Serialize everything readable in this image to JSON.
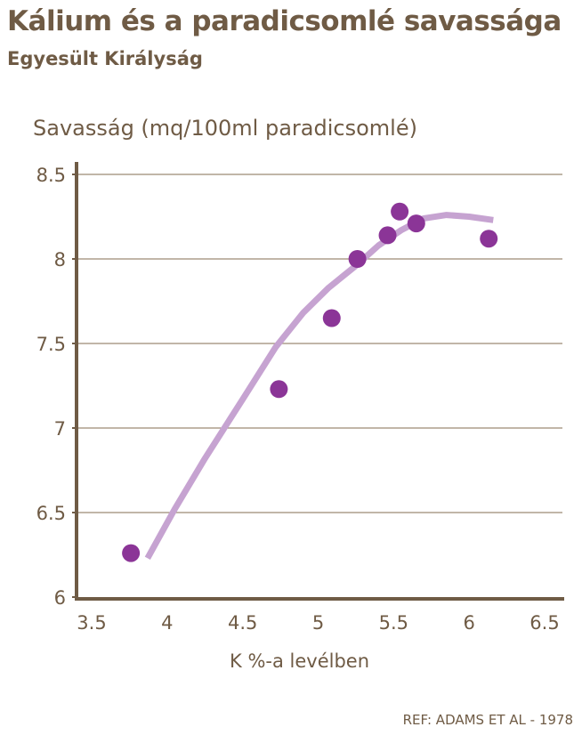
{
  "chart_data": {
    "type": "scatter",
    "title": "Kálium és a paradicsomlé savassága",
    "subtitle": "Egyesült Királyság",
    "xlabel": "K %-a levélben",
    "ylabel": "Savasság (mq/100ml paradicsomlé)",
    "xlim": [
      3.5,
      6.5
    ],
    "ylim": [
      6,
      8.5
    ],
    "xticks": [
      "3.5",
      "4",
      "4.5",
      "5",
      "5.5",
      "6",
      "6.5"
    ],
    "yticks": [
      "6",
      "6.5",
      "7",
      "7.5",
      "8",
      "8.5"
    ],
    "grid": "horizontal",
    "points": {
      "x": [
        3.76,
        4.74,
        5.09,
        5.26,
        5.46,
        5.54,
        5.65,
        6.13
      ],
      "y": [
        6.26,
        7.23,
        7.65,
        8.0,
        8.14,
        8.28,
        8.21,
        8.12
      ]
    },
    "trend": {
      "x": [
        3.87,
        4.05,
        4.25,
        4.5,
        4.72,
        4.9,
        5.07,
        5.25,
        5.4,
        5.55,
        5.7,
        5.85,
        6.0,
        6.16
      ],
      "y": [
        6.23,
        6.52,
        6.82,
        7.17,
        7.48,
        7.68,
        7.83,
        7.96,
        8.08,
        8.17,
        8.24,
        8.26,
        8.25,
        8.23
      ]
    },
    "point_color": "#8b3597",
    "trend_color": "#c6a3d1",
    "axis_color": "#6f5b45"
  },
  "ref": "REF: ADAMS ET AL - 1978"
}
